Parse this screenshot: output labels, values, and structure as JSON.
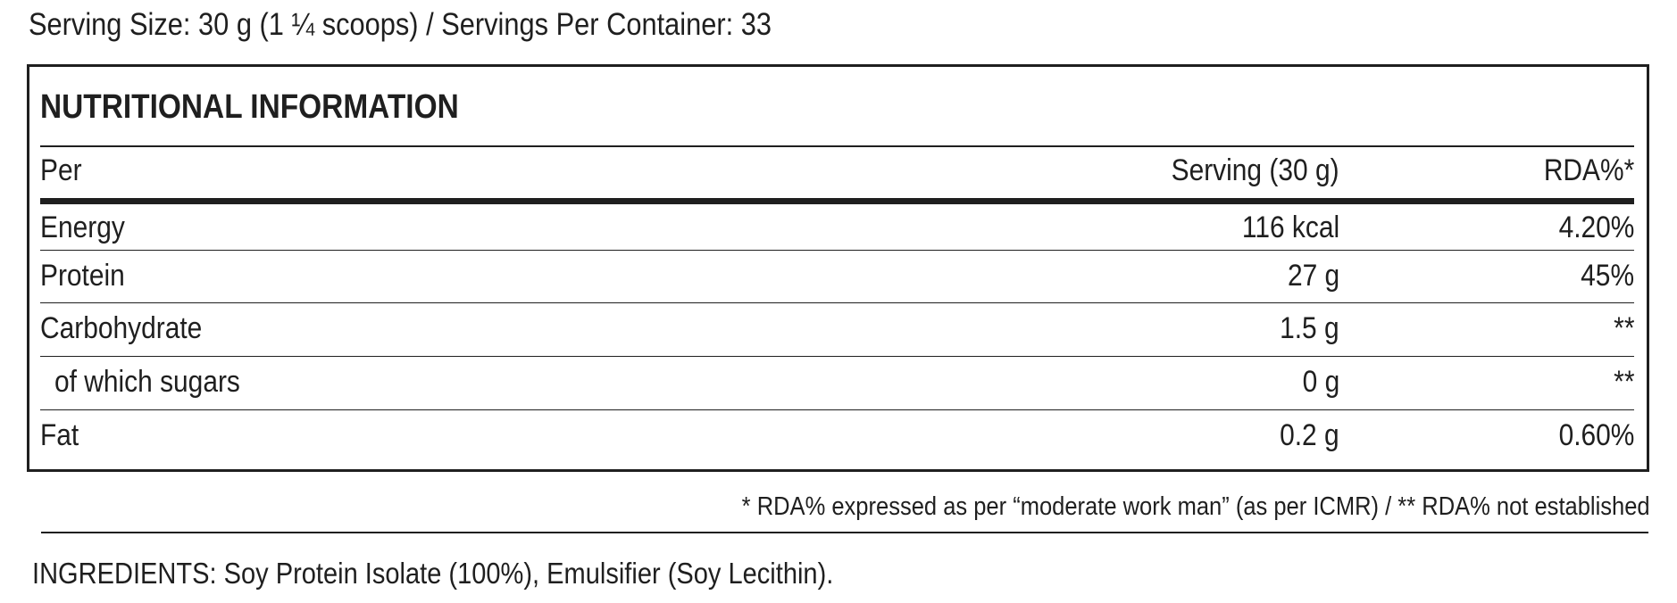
{
  "serving_info": "Serving Size: 30 g (1 ¼ scoops)  / Servings Per Container: 33",
  "table": {
    "title": "NUTRITIONAL INFORMATION",
    "header": {
      "label": "Per",
      "serving": "Serving (30 g)",
      "rda": "RDA%*"
    },
    "rows": [
      {
        "label": "Energy",
        "serving": "116 kcal",
        "rda": "4.20%",
        "indent": false
      },
      {
        "label": "Protein",
        "serving": "27 g",
        "rda": "45%",
        "indent": false
      },
      {
        "label": "Carbohydrate",
        "serving": "1.5 g",
        "rda": "**",
        "indent": false
      },
      {
        "label": "of which sugars",
        "serving": "0 g",
        "rda": "**",
        "indent": true
      },
      {
        "label": "Fat",
        "serving": "0.2 g",
        "rda": "0.60%",
        "indent": false
      }
    ]
  },
  "footnote": "* RDA% expressed as per “moderate work man” (as per ICMR) / ** RDA% not established",
  "ingredients": "INGREDIENTS: Soy Protein Isolate (100%), Emulsifier (Soy Lecithin)."
}
